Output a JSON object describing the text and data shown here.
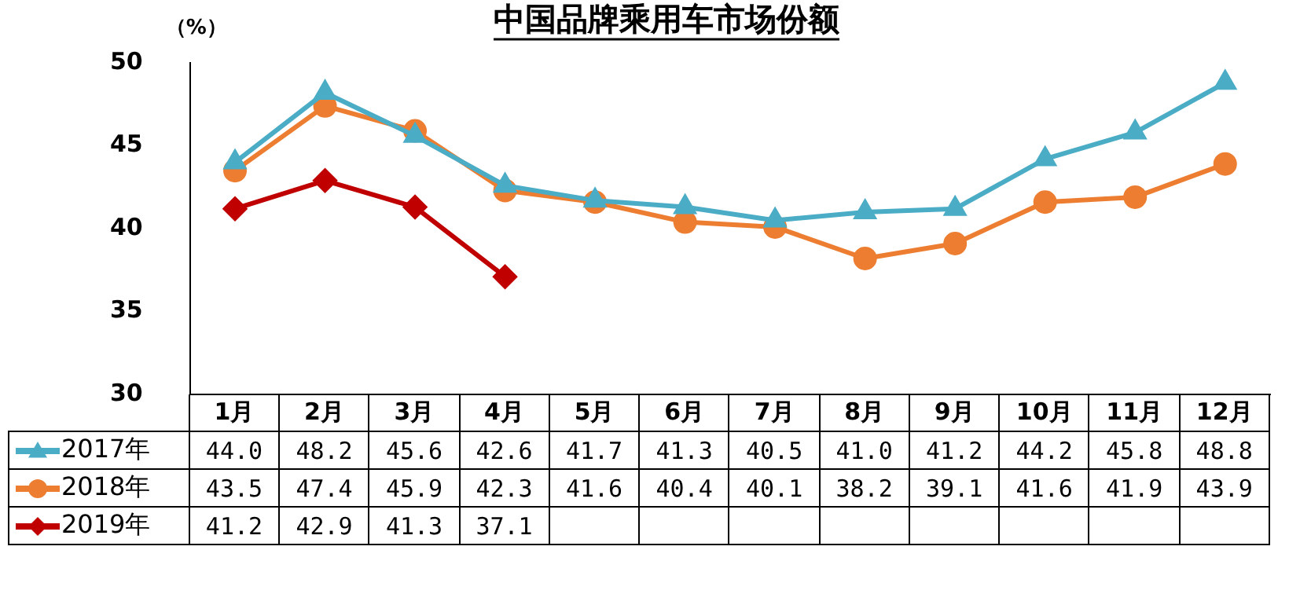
{
  "chart_data": {
    "type": "line",
    "title": "中国品牌乘用车市场份额",
    "ylabel": "（%）",
    "categories": [
      "1月",
      "2月",
      "3月",
      "4月",
      "5月",
      "6月",
      "7月",
      "8月",
      "9月",
      "10月",
      "11月",
      "12月"
    ],
    "ylim": [
      30,
      50
    ],
    "yticks": [
      30,
      35,
      40,
      45,
      50
    ],
    "grid": false,
    "legend": "bottom",
    "line_style": "solid",
    "series": [
      {
        "name": "2017年",
        "color": "#4bacc6",
        "marker": "triangle",
        "values": [
          44.0,
          48.2,
          45.6,
          42.6,
          41.7,
          41.3,
          40.5,
          41.0,
          41.2,
          44.2,
          45.8,
          48.8
        ],
        "value_labels": [
          "44.0",
          "48.2",
          "45.6",
          "42.6",
          "41.7",
          "41.3",
          "40.5",
          "41.0",
          "41.2",
          "44.2",
          "45.8",
          "48.8"
        ]
      },
      {
        "name": "2018年",
        "color": "#ed7d31",
        "marker": "circle",
        "values": [
          43.5,
          47.4,
          45.9,
          42.3,
          41.6,
          40.4,
          40.1,
          38.2,
          39.1,
          41.6,
          41.9,
          43.9
        ],
        "value_labels": [
          "43.5",
          "47.4",
          "45.9",
          "42.3",
          "41.6",
          "40.4",
          "40.1",
          "38.2",
          "39.1",
          "41.6",
          "41.9",
          "43.9"
        ]
      },
      {
        "name": "2019年",
        "color": "#c00000",
        "marker": "diamond",
        "values": [
          41.2,
          42.9,
          41.3,
          37.1,
          null,
          null,
          null,
          null,
          null,
          null,
          null,
          null
        ],
        "value_labels": [
          "41.2",
          "42.9",
          "41.3",
          "37.1",
          null,
          null,
          null,
          null,
          null,
          null,
          null,
          null
        ]
      }
    ]
  }
}
